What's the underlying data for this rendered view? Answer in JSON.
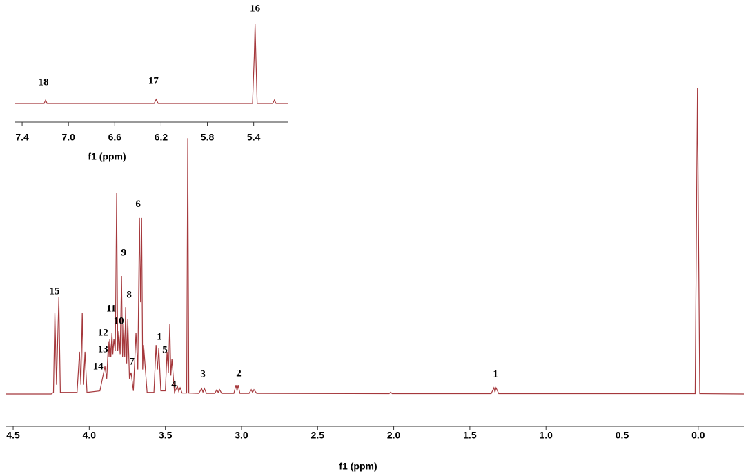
{
  "chart_data": [
    {
      "type": "line",
      "x_label": "f1 (ppm)",
      "xlim": [
        4.55,
        -0.3
      ],
      "xticks": [
        4.5,
        {
          "value": 4,
          "label": "4.0"
        },
        3.5,
        {
          "value": 3,
          "label": "3.0"
        },
        2.5,
        {
          "value": 2,
          "label": "2.0"
        },
        1.5,
        {
          "value": 1,
          "label": "1.0"
        },
        0.5,
        {
          "value": 0,
          "label": "0.0"
        }
      ],
      "ylim": [
        0,
        100
      ],
      "x": [
        4.55,
        4.25,
        4.235,
        4.226,
        4.215,
        4.2,
        4.19,
        4.08,
        4.064,
        4.055,
        4.046,
        4.037,
        4.028,
        4.015,
        3.93,
        3.897,
        3.885,
        3.874,
        3.87,
        3.865,
        3.858,
        3.851,
        3.845,
        3.838,
        3.829,
        3.82,
        3.813,
        3.806,
        3.797,
        3.788,
        3.781,
        3.774,
        3.767,
        3.761,
        3.754,
        3.747,
        3.736,
        3.725,
        3.71,
        3.693,
        3.681,
        3.67,
        3.663,
        3.656,
        3.649,
        3.643,
        3.62,
        3.575,
        3.561,
        3.552,
        3.543,
        3.53,
        3.5,
        3.489,
        3.48,
        3.471,
        3.464,
        3.457,
        3.44,
        3.421,
        3.412,
        3.403,
        3.39,
        3.36,
        3.353,
        3.346,
        3.28,
        3.262,
        3.253,
        3.244,
        3.23,
        3.175,
        3.162,
        3.153,
        3.144,
        3.13,
        3.05,
        3.036,
        3.029,
        3.022,
        3.01,
        2.95,
        2.936,
        2.927,
        2.918,
        2.9,
        2.03,
        2.02,
        2.01,
        1.36,
        1.342,
        1.335,
        1.328,
        1.31,
        0.02,
        0.005,
        -0.01,
        -0.3
      ],
      "series": [
        {
          "color": "#a5383c",
          "values": [
            0,
            0,
            0.5,
            26.6,
            3,
            31.6,
            0.5,
            0.5,
            13.8,
            3,
            26.6,
            3,
            13.8,
            0.5,
            1,
            9,
            5,
            17,
            12,
            18,
            12,
            20,
            13,
            18,
            14,
            65.7,
            14,
            20.5,
            13,
            38.6,
            12,
            22.8,
            12,
            28.4,
            10,
            24.6,
            5,
            7,
            1,
            20,
            8,
            57.6,
            30,
            57.6,
            8,
            16,
            0.5,
            0.5,
            16,
            8,
            15,
            1,
            1,
            13.8,
            7,
            22.8,
            6,
            11.5,
            0.5,
            2.5,
            0.8,
            2,
            0.3,
            0.3,
            83.7,
            0.3,
            0.2,
            1.8,
            0.6,
            1.8,
            0.2,
            0.2,
            1.4,
            0.5,
            1.4,
            0.2,
            0.2,
            2.9,
            1,
            2.9,
            0.2,
            0.2,
            1.4,
            0.5,
            1.4,
            0.2,
            0.1,
            0.6,
            0.1,
            0.1,
            2,
            0.6,
            2,
            0.1,
            0.1,
            100,
            0.1,
            0
          ]
        }
      ],
      "annotations": [
        {
          "text": "15",
          "x": 4.228,
          "y": 33.4
        },
        {
          "text": "14",
          "x": 3.942,
          "y": 8.8
        },
        {
          "text": "13",
          "x": 3.91,
          "y": 14.4
        },
        {
          "text": "12",
          "x": 3.91,
          "y": 19.9
        },
        {
          "text": "11",
          "x": 3.856,
          "y": 27.8
        },
        {
          "text": "10",
          "x": 3.806,
          "y": 23.7
        },
        {
          "text": "9",
          "x": 3.774,
          "y": 46
        },
        {
          "text": "8",
          "x": 3.738,
          "y": 32.3
        },
        {
          "text": "7",
          "x": 3.72,
          "y": 10.4
        },
        {
          "text": "6",
          "x": 3.679,
          "y": 61.9
        },
        {
          "text": "1",
          "x": 3.539,
          "y": 18.5
        },
        {
          "text": "5",
          "x": 3.503,
          "y": 14.2
        },
        {
          "text": "4",
          "x": 3.444,
          "y": 2.9
        },
        {
          "text": "3",
          "x": 3.253,
          "y": 6.3
        },
        {
          "text": "2",
          "x": 3.018,
          "y": 6.5
        },
        {
          "text": "1",
          "x": 1.332,
          "y": 6.3
        }
      ]
    },
    {
      "type": "line",
      "x_label": "f1 (ppm)",
      "xlim": [
        7.46,
        5.1
      ],
      "xticks": [
        7.4,
        {
          "value": 7,
          "label": "7.0"
        },
        6.6,
        6.2,
        5.8,
        5.4
      ],
      "ylim": [
        0,
        100
      ],
      "x": [
        7.46,
        7.21,
        7.197,
        7.185,
        6.26,
        6.242,
        6.225,
        5.41,
        5.395,
        5.388,
        5.381,
        5.37,
        5.235,
        5.221,
        5.207,
        5.1
      ],
      "series": [
        {
          "color": "#a5383c",
          "values": [
            0,
            0,
            4.3,
            0,
            0,
            5.2,
            0,
            0,
            60,
            100,
            60,
            0,
            0,
            4.3,
            0,
            0
          ]
        }
      ],
      "annotations": [
        {
          "text": "18",
          "x": 7.215,
          "y": 26
        },
        {
          "text": "17",
          "x": 6.266,
          "y": 27.8
        },
        {
          "text": "16",
          "x": 5.388,
          "y": 119
        }
      ]
    }
  ]
}
